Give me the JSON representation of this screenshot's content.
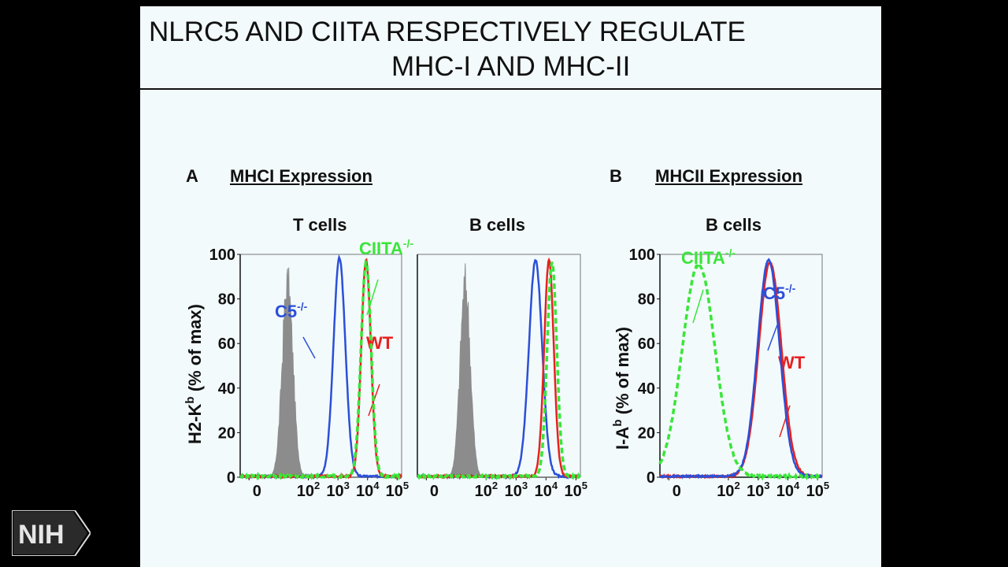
{
  "slide": {
    "title_line1": "NLRC5 AND CIITA RESPECTIVELY REGULATE",
    "title_line2": "MHC-I AND MHC-II"
  },
  "panels": {
    "a": {
      "letter": "A",
      "heading": "MHCI Expression",
      "subheads": [
        "T cells",
        "B cells"
      ]
    },
    "b": {
      "letter": "B",
      "heading": "MHCII Expression",
      "subheads": [
        "B cells"
      ]
    }
  },
  "logo": {
    "text": "NIH"
  },
  "colors": {
    "wt": "#e8201f",
    "c5": "#2b4fd8",
    "ciita": "#39e639",
    "isotype": "#8c8c8c"
  },
  "chart_data": [
    {
      "type": "line",
      "panel": "A",
      "subtitle": "T cells",
      "ylabel": "H2-K",
      "ylabel_sup": "b",
      "ylabel_rest": " (% of max)",
      "ylim": [
        0,
        100
      ],
      "yticks": [
        0,
        20,
        40,
        60,
        80,
        100
      ],
      "xscale": "log",
      "xtick_labels": [
        {
          "base": "0",
          "exp": ""
        },
        {
          "base": "10",
          "exp": "2"
        },
        {
          "base": "10",
          "exp": "3"
        },
        {
          "base": "10",
          "exp": "4"
        },
        {
          "base": "10",
          "exp": "5"
        }
      ],
      "series": [
        {
          "kind": "filled",
          "color_key": "isotype",
          "peak_log": 1.3,
          "width": 0.18,
          "height": 97
        },
        {
          "kind": "line",
          "color_key": "c5",
          "peak_log": 3.05,
          "width": 0.2,
          "height": 98,
          "label": "C5",
          "label_sup": "-/-"
        },
        {
          "kind": "line",
          "color_key": "wt",
          "peak_log": 3.95,
          "width": 0.16,
          "height": 97,
          "label": "WT"
        },
        {
          "kind": "dashed",
          "color_key": "ciita",
          "peak_log": 3.95,
          "width": 0.17,
          "height": 96,
          "label": "CIITA",
          "label_sup": "-/-"
        }
      ]
    },
    {
      "type": "line",
      "panel": "A",
      "subtitle": "B cells",
      "ylim": [
        0,
        100
      ],
      "xscale": "log",
      "xtick_labels": [
        {
          "base": "0",
          "exp": ""
        },
        {
          "base": "10",
          "exp": "2"
        },
        {
          "base": "10",
          "exp": "3"
        },
        {
          "base": "10",
          "exp": "4"
        },
        {
          "base": "10",
          "exp": "5"
        }
      ],
      "series": [
        {
          "kind": "filled",
          "color_key": "isotype",
          "peak_log": 1.3,
          "width": 0.17,
          "height": 97
        },
        {
          "kind": "line",
          "color_key": "c5",
          "peak_log": 3.65,
          "width": 0.22,
          "height": 97
        },
        {
          "kind": "line",
          "color_key": "wt",
          "peak_log": 4.1,
          "width": 0.16,
          "height": 97
        },
        {
          "kind": "dashed",
          "color_key": "ciita",
          "peak_log": 4.2,
          "width": 0.16,
          "height": 96
        }
      ]
    },
    {
      "type": "line",
      "panel": "B",
      "subtitle": "B cells",
      "ylabel": "I-A",
      "ylabel_sup": "b",
      "ylabel_rest": " (% of max)",
      "ylim": [
        0,
        100
      ],
      "yticks": [
        0,
        20,
        40,
        60,
        80,
        100
      ],
      "xscale": "log",
      "xtick_labels": [
        {
          "base": "0",
          "exp": ""
        },
        {
          "base": "10",
          "exp": "2"
        },
        {
          "base": "10",
          "exp": "3"
        },
        {
          "base": "10",
          "exp": "4"
        },
        {
          "base": "10",
          "exp": "5"
        }
      ],
      "series": [
        {
          "kind": "line",
          "color_key": "wt",
          "peak_log": 3.4,
          "width": 0.38,
          "height": 96,
          "label": "WT"
        },
        {
          "kind": "line",
          "color_key": "c5",
          "peak_log": 3.35,
          "width": 0.37,
          "height": 97,
          "label": "C5",
          "label_sup": "-/-"
        },
        {
          "kind": "dashed",
          "color_key": "ciita",
          "peak_log": 1.0,
          "width": 0.55,
          "height": 95,
          "label": "CIITA",
          "label_sup": "-/-"
        }
      ]
    }
  ]
}
